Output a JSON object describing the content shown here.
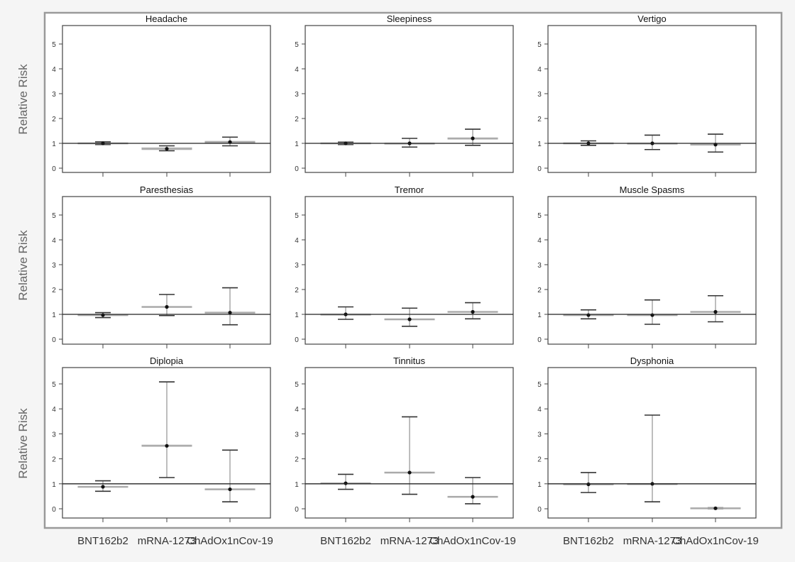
{
  "chart_data": {
    "type": "box",
    "ylabel": "Relative Risk",
    "categories": [
      "BNT162b2",
      "mRNA-1273",
      "ChAdOx1nCov-19"
    ],
    "ylim": [
      0,
      5
    ],
    "yticks": [
      0,
      1,
      2,
      3,
      4,
      5
    ],
    "reference_line": 1,
    "panels": [
      {
        "title": "Headache",
        "groups": [
          {
            "point": 1.0,
            "box": [
              0.98,
              1.02
            ],
            "whisker": [
              0.95,
              1.06
            ]
          },
          {
            "point": 0.78,
            "box": [
              0.75,
              0.82
            ],
            "whisker": [
              0.7,
              0.9
            ]
          },
          {
            "point": 1.05,
            "box": [
              1.02,
              1.08
            ],
            "whisker": [
              0.9,
              1.25
            ]
          }
        ]
      },
      {
        "title": "Sleepiness",
        "groups": [
          {
            "point": 1.0,
            "box": [
              0.98,
              1.02
            ],
            "whisker": [
              0.95,
              1.05
            ]
          },
          {
            "point": 1.0,
            "box": [
              0.99,
              1.01
            ],
            "whisker": [
              0.85,
              1.2
            ]
          },
          {
            "point": 1.2,
            "box": [
              1.17,
              1.22
            ],
            "whisker": [
              0.92,
              1.57
            ]
          }
        ]
      },
      {
        "title": "Vertigo",
        "groups": [
          {
            "point": 1.0,
            "box": [
              0.98,
              1.02
            ],
            "whisker": [
              0.92,
              1.1
            ]
          },
          {
            "point": 1.0,
            "box": [
              0.99,
              1.01
            ],
            "whisker": [
              0.75,
              1.33
            ]
          },
          {
            "point": 0.95,
            "box": [
              0.93,
              0.97
            ],
            "whisker": [
              0.65,
              1.37
            ]
          }
        ]
      },
      {
        "title": "Paresthesias",
        "groups": [
          {
            "point": 0.97,
            "box": [
              0.96,
              0.99
            ],
            "whisker": [
              0.87,
              1.07
            ]
          },
          {
            "point": 1.3,
            "box": [
              1.28,
              1.32
            ],
            "whisker": [
              0.95,
              1.8
            ]
          },
          {
            "point": 1.07,
            "box": [
              1.05,
              1.09
            ],
            "whisker": [
              0.58,
              2.07
            ]
          }
        ]
      },
      {
        "title": "Tremor",
        "groups": [
          {
            "point": 1.0,
            "box": [
              0.99,
              1.01
            ],
            "whisker": [
              0.8,
              1.3
            ]
          },
          {
            "point": 0.8,
            "box": [
              0.78,
              0.82
            ],
            "whisker": [
              0.52,
              1.25
            ]
          },
          {
            "point": 1.1,
            "box": [
              1.08,
              1.12
            ],
            "whisker": [
              0.82,
              1.47
            ]
          }
        ]
      },
      {
        "title": "Muscle Spasms",
        "groups": [
          {
            "point": 0.97,
            "box": [
              0.95,
              0.99
            ],
            "whisker": [
              0.82,
              1.18
            ]
          },
          {
            "point": 0.97,
            "box": [
              0.96,
              0.99
            ],
            "whisker": [
              0.6,
              1.58
            ]
          },
          {
            "point": 1.1,
            "box": [
              1.08,
              1.12
            ],
            "whisker": [
              0.7,
              1.75
            ]
          }
        ]
      },
      {
        "title": "Diplopia",
        "groups": [
          {
            "point": 0.88,
            "box": [
              0.86,
              0.9
            ],
            "whisker": [
              0.7,
              1.12
            ]
          },
          {
            "point": 2.52,
            "box": [
              2.5,
              2.55
            ],
            "whisker": [
              1.25,
              5.08
            ]
          },
          {
            "point": 0.78,
            "box": [
              0.76,
              0.8
            ],
            "whisker": [
              0.28,
              2.35
            ]
          }
        ]
      },
      {
        "title": "Tinnitus",
        "groups": [
          {
            "point": 1.02,
            "box": [
              1.0,
              1.04
            ],
            "whisker": [
              0.78,
              1.38
            ]
          },
          {
            "point": 1.45,
            "box": [
              1.43,
              1.47
            ],
            "whisker": [
              0.58,
              3.68
            ]
          },
          {
            "point": 0.48,
            "box": [
              0.46,
              0.5
            ],
            "whisker": [
              0.2,
              1.25
            ]
          }
        ]
      },
      {
        "title": "Dysphonia",
        "groups": [
          {
            "point": 0.98,
            "box": [
              0.97,
              1.0
            ],
            "whisker": [
              0.65,
              1.45
            ]
          },
          {
            "point": 1.0,
            "box": [
              0.99,
              1.01
            ],
            "whisker": [
              0.28,
              3.75
            ]
          },
          {
            "point": 0.02,
            "box": [
              0.0,
              0.04
            ],
            "whisker": [
              0.0,
              0.04
            ]
          }
        ]
      }
    ]
  },
  "style": {
    "panel_border": "#444444",
    "reference_line": "#222222",
    "box_line": "#aaaaaa",
    "whisker_cap": "#333333",
    "whisker_line": "#999999",
    "point": "#111111",
    "outer_frame": "#9a9a9a",
    "text": "#333333",
    "axis_label": "#666666"
  }
}
